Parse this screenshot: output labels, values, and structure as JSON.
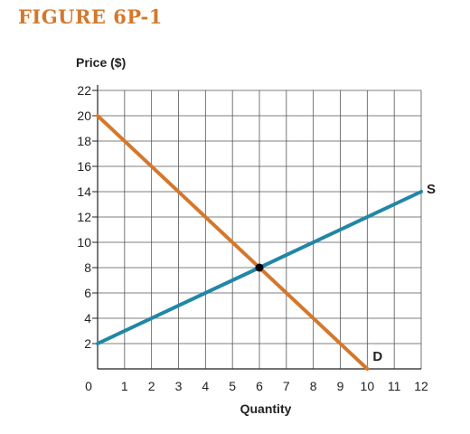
{
  "figure_title": "FIGURE 6P-1",
  "colors": {
    "title": "#d4782c",
    "demand": "#d4782c",
    "supply": "#2187a6",
    "grid": "#555555",
    "equilibrium": "#000000"
  },
  "chart_data": {
    "type": "line",
    "title": "",
    "ylabel": "Price ($)",
    "xlabel": "Quantity",
    "xlim": [
      0,
      12
    ],
    "ylim": [
      0,
      22
    ],
    "x_ticks": [
      "0",
      "1",
      "2",
      "3",
      "4",
      "5",
      "6",
      "7",
      "8",
      "9",
      "10",
      "11",
      "12"
    ],
    "y_ticks": [
      "2",
      "4",
      "6",
      "8",
      "10",
      "12",
      "14",
      "16",
      "18",
      "20",
      "22"
    ],
    "grid": true,
    "series": [
      {
        "name": "D",
        "points": [
          [
            0,
            20
          ],
          [
            10,
            0
          ]
        ]
      },
      {
        "name": "S",
        "points": [
          [
            0,
            2
          ],
          [
            12,
            14
          ]
        ]
      }
    ],
    "equilibrium": {
      "x": 6,
      "y": 8
    }
  }
}
